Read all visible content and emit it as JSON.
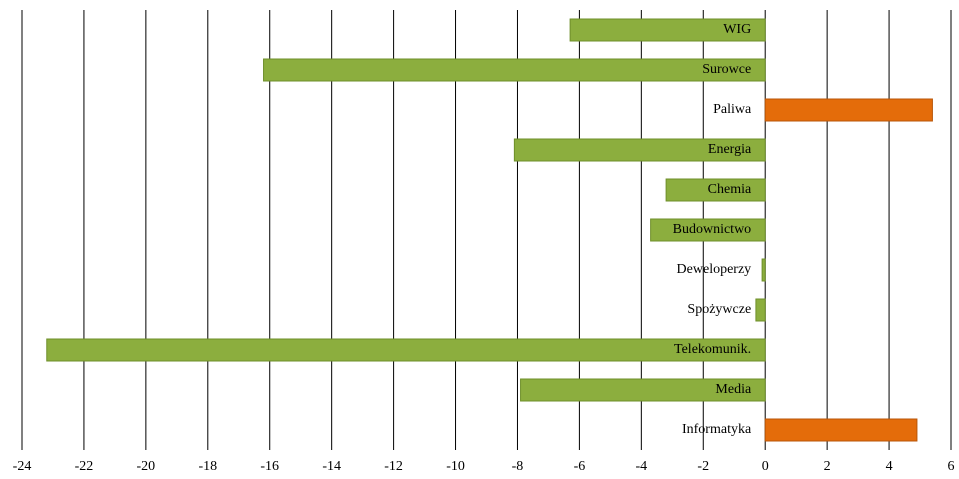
{
  "chart_data": {
    "type": "barh",
    "categories": [
      "WIG",
      "Surowce",
      "Paliwa",
      "Energia",
      "Chemia",
      "Budownictwo",
      "Deweloperzy",
      "Spożywcze",
      "Telekomunik.",
      "Media",
      "Informatyka"
    ],
    "values": [
      -6.3,
      -16.2,
      5.4,
      -8.1,
      -3.2,
      -3.7,
      -0.1,
      -0.3,
      -23.2,
      -7.9,
      4.9
    ],
    "colors": [
      "#8cae3e",
      "#8cae3e",
      "#e46c0a",
      "#8cae3e",
      "#8cae3e",
      "#8cae3e",
      "#8cae3e",
      "#8cae3e",
      "#8cae3e",
      "#8cae3e",
      "#e46c0a"
    ],
    "xlim": [
      -24,
      6
    ],
    "xticks": [
      -24,
      -22,
      -20,
      -18,
      -16,
      -14,
      -12,
      -10,
      -8,
      -6,
      -4,
      -2,
      0,
      2,
      4,
      6
    ],
    "grid": true
  }
}
